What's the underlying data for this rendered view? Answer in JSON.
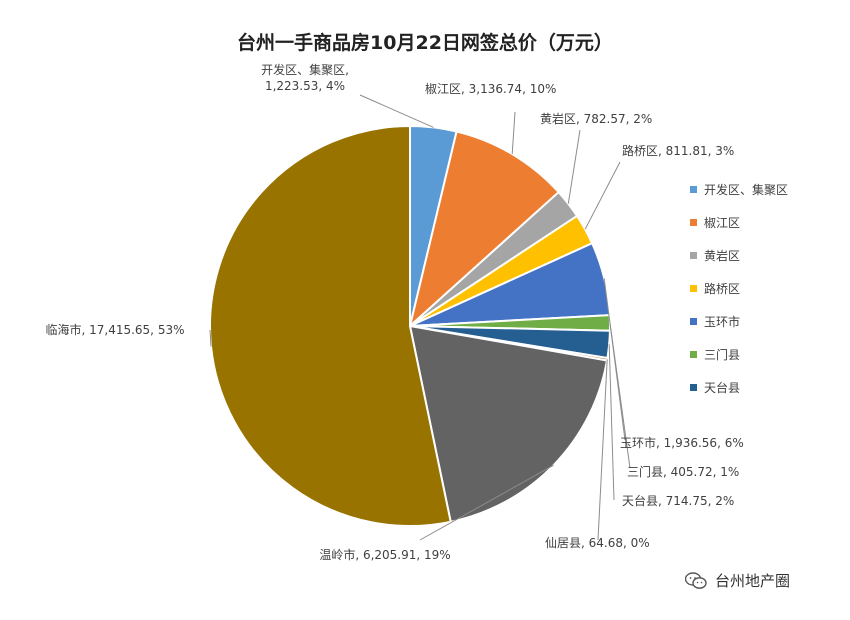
{
  "chart_data": {
    "type": "pie",
    "title": "台州一手商品房10月22日网签总价（万元）",
    "slices": [
      {
        "name": "开发区、集聚区",
        "label_lines": [
          "开发区、集聚区,",
          "1,223.53, 4%"
        ],
        "value": 1223.53,
        "color": "#5b9bd5"
      },
      {
        "name": "椒江区",
        "label_lines": [
          "椒江区, 3,136.74, 10%"
        ],
        "value": 3136.74,
        "color": "#ed7d31"
      },
      {
        "name": "黄岩区",
        "label_lines": [
          "黄岩区, 782.57, 2%"
        ],
        "value": 782.57,
        "color": "#a5a5a5"
      },
      {
        "name": "路桥区",
        "label_lines": [
          "路桥区, 811.81, 3%"
        ],
        "value": 811.81,
        "color": "#ffc000"
      },
      {
        "name": "玉环市",
        "label_lines": [
          "玉环市, 1,936.56, 6%"
        ],
        "value": 1936.56,
        "color": "#4472c4"
      },
      {
        "name": "三门县",
        "label_lines": [
          "三门县, 405.72, 1%"
        ],
        "value": 405.72,
        "color": "#70ad47"
      },
      {
        "name": "天台县",
        "label_lines": [
          "天台县, 714.75, 2%"
        ],
        "value": 714.75,
        "color": "#255e91"
      },
      {
        "name": "仙居县",
        "label_lines": [
          "仙居县, 64.68, 0%"
        ],
        "value": 64.68,
        "color": "#9e480e"
      },
      {
        "name": "温岭市",
        "label_lines": [
          "温岭市, 6,205.91, 19%"
        ],
        "value": 6205.91,
        "color": "#636363"
      },
      {
        "name": "临海市",
        "label_lines": [
          "临海市, 17,415.65, 53%"
        ],
        "value": 17415.65,
        "color": "#997300"
      }
    ],
    "legend": {
      "placement": "right",
      "entries": [
        "开发区、集聚区",
        "椒江区",
        "黄岩区",
        "路桥区",
        "玉环市",
        "三门县",
        "天台县"
      ]
    }
  },
  "watermark": {
    "text": "台州地产圈",
    "icon": "wechat-icon"
  }
}
